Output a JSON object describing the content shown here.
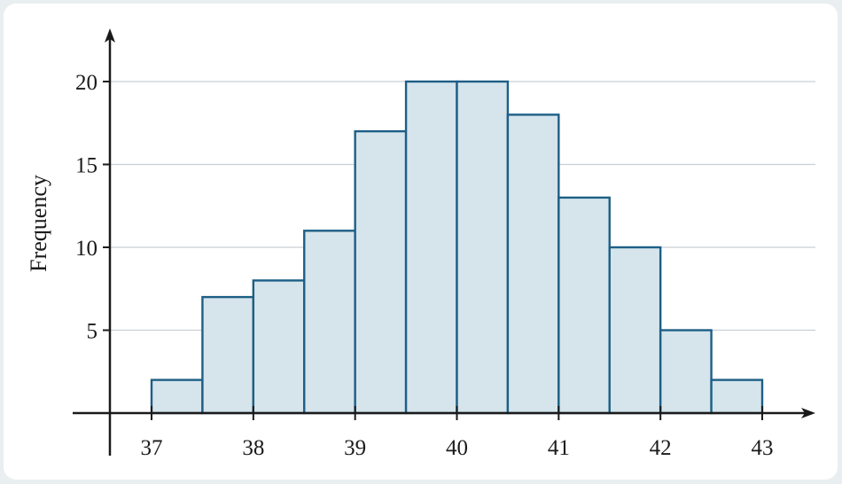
{
  "chart_data": {
    "type": "bar",
    "subtype": "histogram",
    "title": "",
    "xlabel": "",
    "ylabel": "Frequency",
    "bin_width": 0.5,
    "bins": [
      {
        "x0": 37.0,
        "x1": 37.5,
        "value": 2
      },
      {
        "x0": 37.5,
        "x1": 38.0,
        "value": 7
      },
      {
        "x0": 38.0,
        "x1": 38.5,
        "value": 8
      },
      {
        "x0": 38.5,
        "x1": 39.0,
        "value": 11
      },
      {
        "x0": 39.0,
        "x1": 39.5,
        "value": 17
      },
      {
        "x0": 39.5,
        "x1": 40.0,
        "value": 20
      },
      {
        "x0": 40.0,
        "x1": 40.5,
        "value": 20
      },
      {
        "x0": 40.5,
        "x1": 41.0,
        "value": 18
      },
      {
        "x0": 41.0,
        "x1": 41.5,
        "value": 13
      },
      {
        "x0": 41.5,
        "x1": 42.0,
        "value": 10
      },
      {
        "x0": 42.0,
        "x1": 42.5,
        "value": 5
      },
      {
        "x0": 42.5,
        "x1": 43.0,
        "value": 2
      }
    ],
    "xticks": [
      "37",
      "38",
      "39",
      "40",
      "41",
      "42",
      "43"
    ],
    "yticks": [
      "5",
      "10",
      "15",
      "20"
    ],
    "xlim": [
      36.6,
      43.5
    ],
    "ylim": [
      0,
      20
    ],
    "grid": "horizontal",
    "legend": "none",
    "colors": {
      "bar_fill": "#d6e4ec",
      "bar_edge": "#1d5f86",
      "bar_edge_accent": "#0f5680",
      "axis": "#1a1a1a",
      "grid": "#c9cfd3",
      "frame_bg": "#e9eef1",
      "plot_bg": "#ffffff"
    }
  }
}
